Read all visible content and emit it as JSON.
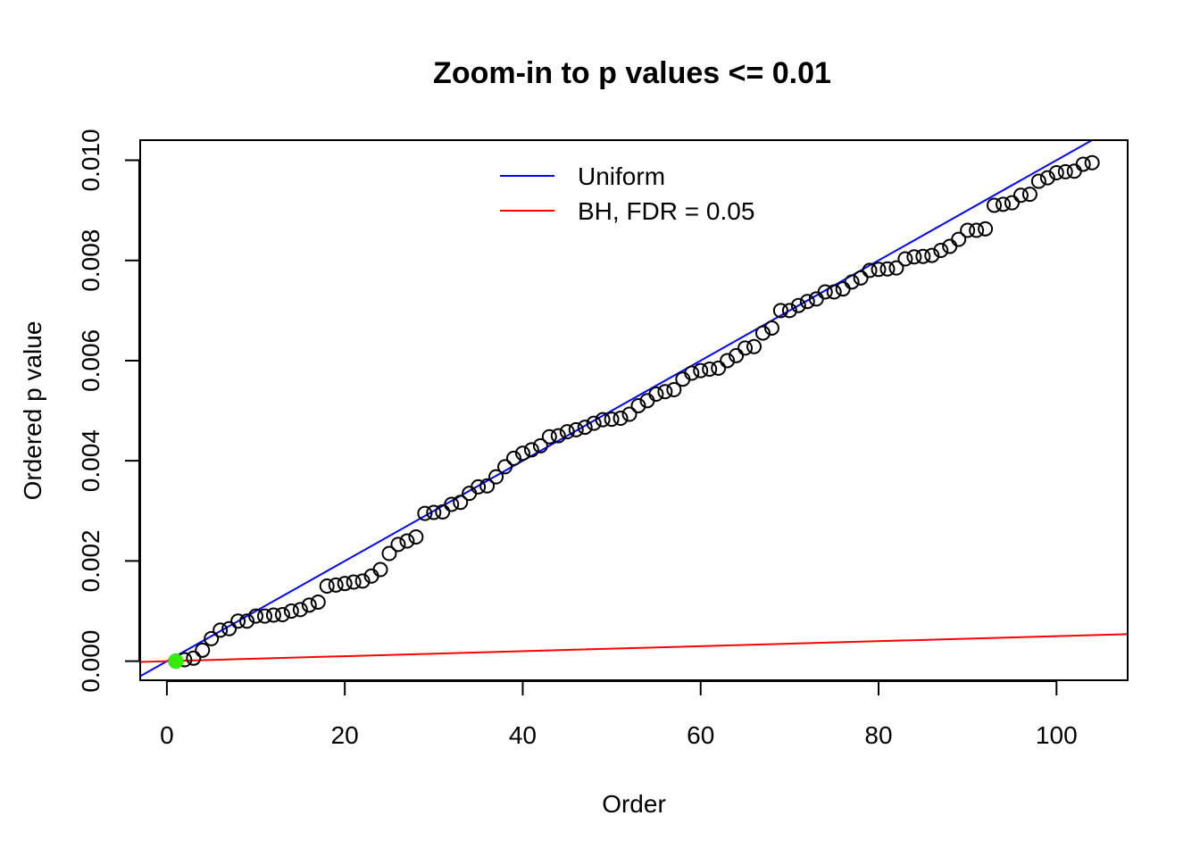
{
  "chart_data": {
    "type": "scatter",
    "title": "Zoom-in to p values <= 0.01",
    "xlabel": "Order",
    "ylabel": "Ordered p value",
    "xlim": [
      -3,
      108
    ],
    "ylim": [
      -0.00038,
      0.0104
    ],
    "xticks": [
      0,
      20,
      40,
      60,
      80,
      100
    ],
    "yticks": [
      0.0,
      0.002,
      0.004,
      0.006,
      0.008,
      0.01
    ],
    "xtick_labels": [
      "0",
      "20",
      "40",
      "60",
      "80",
      "100"
    ],
    "ytick_labels": [
      "0.000",
      "0.002",
      "0.004",
      "0.006",
      "0.008",
      "0.010"
    ],
    "grid": false,
    "legend_position": "top-center",
    "legend": [
      {
        "label": "Uniform",
        "color": "#0000ff"
      },
      {
        "label": "BH, FDR = 0.05",
        "color": "#ff0000"
      }
    ],
    "lines": [
      {
        "name": "Uniform",
        "color": "#0000ff",
        "slope": 0.0001,
        "intercept": 0
      },
      {
        "name": "BH, FDR = 0.05",
        "color": "#ff0000",
        "slope": 5e-06,
        "intercept": 0
      }
    ],
    "highlight": {
      "x": 1,
      "y": 0.0,
      "color": "#33ee00"
    },
    "series": [
      {
        "name": "Ordered p values",
        "marker": "open-circle",
        "color": "#000000",
        "x": [
          1,
          2,
          3,
          4,
          5,
          6,
          7,
          8,
          9,
          10,
          11,
          12,
          13,
          14,
          15,
          16,
          17,
          18,
          19,
          20,
          21,
          22,
          23,
          24,
          25,
          26,
          27,
          28,
          29,
          30,
          31,
          32,
          33,
          34,
          35,
          36,
          37,
          38,
          39,
          40,
          41,
          42,
          43,
          44,
          45,
          46,
          47,
          48,
          49,
          50,
          51,
          52,
          53,
          54,
          55,
          56,
          57,
          58,
          59,
          60,
          61,
          62,
          63,
          64,
          65,
          66,
          67,
          68,
          69,
          70,
          71,
          72,
          73,
          74,
          75,
          76,
          77,
          78,
          79,
          80,
          81,
          82,
          83,
          84,
          85,
          86,
          87,
          88,
          89,
          90,
          91,
          92,
          93,
          94,
          95,
          96,
          97,
          98,
          99,
          100,
          101,
          102,
          103,
          104
        ],
        "y": [
          0.0,
          3e-05,
          6e-05,
          0.00022,
          0.00045,
          0.00062,
          0.00065,
          0.0008,
          0.0008,
          0.0009,
          0.0009,
          0.00092,
          0.00093,
          0.001,
          0.00103,
          0.00112,
          0.00118,
          0.0015,
          0.00152,
          0.00155,
          0.00158,
          0.0016,
          0.0017,
          0.00183,
          0.00215,
          0.00233,
          0.0024,
          0.00248,
          0.00295,
          0.00297,
          0.00298,
          0.00313,
          0.00317,
          0.00335,
          0.00348,
          0.0035,
          0.00368,
          0.00388,
          0.00405,
          0.00415,
          0.00422,
          0.0043,
          0.00448,
          0.0045,
          0.00458,
          0.00462,
          0.00467,
          0.00475,
          0.00482,
          0.00483,
          0.00485,
          0.00493,
          0.0051,
          0.0052,
          0.00533,
          0.00538,
          0.00542,
          0.00563,
          0.00575,
          0.0058,
          0.00583,
          0.00585,
          0.006,
          0.0061,
          0.00625,
          0.00628,
          0.00655,
          0.00665,
          0.007,
          0.007,
          0.0071,
          0.00718,
          0.00723,
          0.00737,
          0.00737,
          0.00743,
          0.00757,
          0.00765,
          0.0078,
          0.00782,
          0.00783,
          0.00785,
          0.00803,
          0.00807,
          0.00808,
          0.0081,
          0.0082,
          0.00828,
          0.00842,
          0.0086,
          0.0086,
          0.00863,
          0.0091,
          0.00912,
          0.00915,
          0.0093,
          0.00932,
          0.00958,
          0.00965,
          0.00975,
          0.00977,
          0.00978,
          0.00992,
          0.00995
        ]
      }
    ]
  }
}
